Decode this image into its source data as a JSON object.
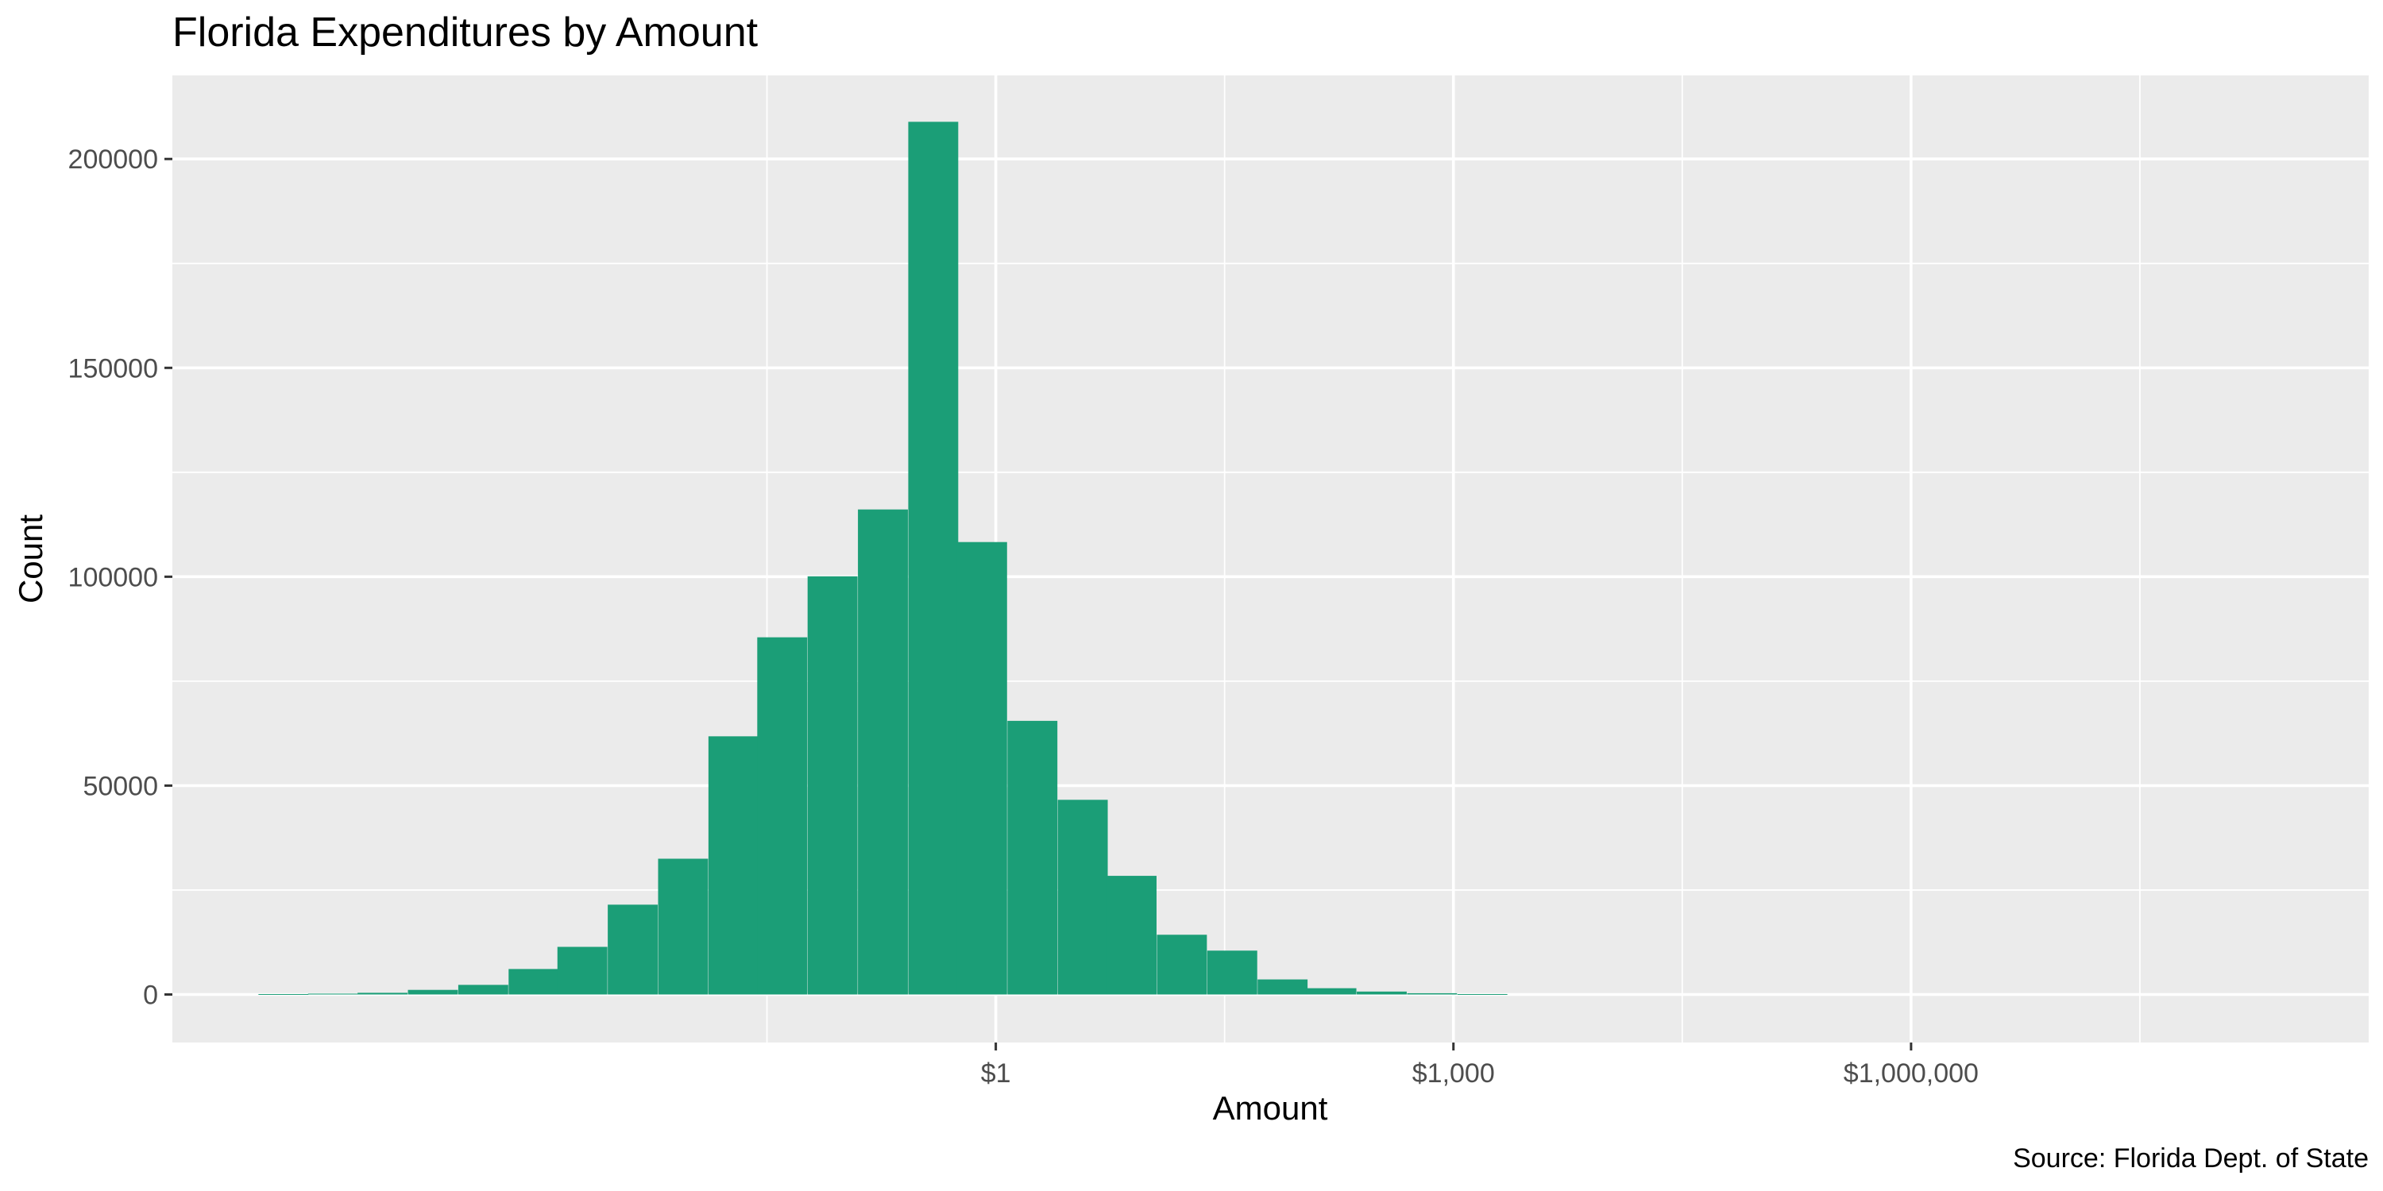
{
  "chart_data": {
    "type": "bar",
    "title": "Florida Expenditures by Amount",
    "xlabel": "Amount",
    "ylabel": "Count",
    "caption": "Source: Florida Dept. of State",
    "x_scale": "log10",
    "xlim": [
      4e-06,
      1000000000
    ],
    "ylim": [
      -11500,
      220000
    ],
    "x_ticks": [
      {
        "value": 1,
        "label": "$1"
      },
      {
        "value": 1000,
        "label": "$1,000"
      },
      {
        "value": 1000000,
        "label": "$1,000,000"
      }
    ],
    "y_ticks": [
      0,
      50000,
      100000,
      150000,
      200000
    ],
    "bin_width_log10": 0.3275,
    "bars": [
      {
        "x_log10": -4.67,
        "count": 100
      },
      {
        "x_log10": -4.345,
        "count": 200
      },
      {
        "x_log10": -4.02,
        "count": 400
      },
      {
        "x_log10": -3.69,
        "count": 1100
      },
      {
        "x_log10": -3.36,
        "count": 2300
      },
      {
        "x_log10": -3.03,
        "count": 6100
      },
      {
        "x_log10": -2.71,
        "count": 11400
      },
      {
        "x_log10": -2.38,
        "count": 21500
      },
      {
        "x_log10": -2.05,
        "count": 32500
      },
      {
        "x_log10": -1.72,
        "count": 61800
      },
      {
        "x_log10": -1.4,
        "count": 85500
      },
      {
        "x_log10": -1.07,
        "count": 100100
      },
      {
        "x_log10": -0.74,
        "count": 116100
      },
      {
        "x_log10": -0.41,
        "count": 208900
      },
      {
        "x_log10": -0.09,
        "count": 108300
      },
      {
        "x_log10": 0.24,
        "count": 65500
      },
      {
        "x_log10": 0.57,
        "count": 46600
      },
      {
        "x_log10": 0.89,
        "count": 28400
      },
      {
        "x_log10": 1.22,
        "count": 14300
      },
      {
        "x_log10": 1.55,
        "count": 10500
      },
      {
        "x_log10": 1.88,
        "count": 3600
      },
      {
        "x_log10": 2.2,
        "count": 1500
      },
      {
        "x_log10": 2.53,
        "count": 700
      },
      {
        "x_log10": 2.86,
        "count": 300
      },
      {
        "x_log10": 3.19,
        "count": 100
      }
    ],
    "grid": true,
    "colors": {
      "bar": "#1b9e77",
      "panel": "#ebebeb",
      "grid": "#ffffff",
      "tick": "#333333"
    }
  }
}
